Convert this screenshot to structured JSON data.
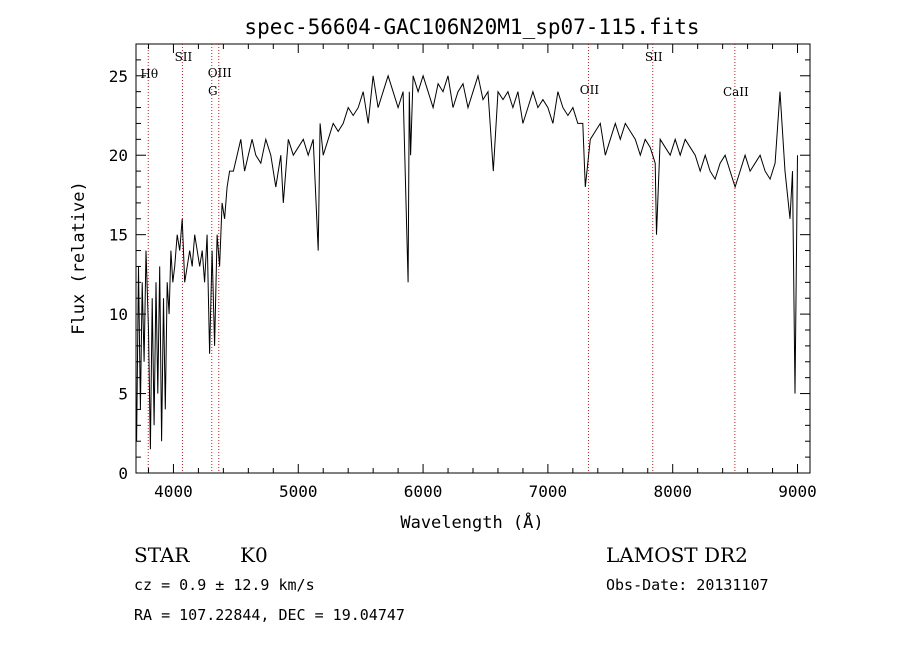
{
  "chart_data": {
    "type": "line",
    "title": "spec-56604-GAC106N20M1_sp07-115.fits",
    "xlabel": "Wavelength (Å)",
    "ylabel": "Flux (relative)",
    "xlim": [
      3700,
      9100
    ],
    "ylim": [
      0,
      27
    ],
    "grid": false,
    "x_ticks": [
      4000,
      5000,
      6000,
      7000,
      8000,
      9000
    ],
    "x_tick_labels": [
      "4000",
      "5000",
      "6000",
      "7000",
      "8000",
      "9000"
    ],
    "y_ticks": [
      0,
      5,
      10,
      15,
      20,
      25
    ],
    "y_tick_labels": [
      "0",
      "5",
      "10",
      "15",
      "20",
      "25"
    ],
    "line_color": "#000000",
    "marker_color": "#b22222",
    "series": [
      {
        "x": [
          3705,
          3720,
          3735,
          3750,
          3765,
          3780,
          3800,
          3815,
          3830,
          3845,
          3860,
          3875,
          3890,
          3905,
          3920,
          3935,
          3950,
          3965,
          3980,
          3995,
          4010,
          4030,
          4050,
          4070,
          4090,
          4110,
          4130,
          4150,
          4170,
          4190,
          4210,
          4230,
          4250,
          4270,
          4290,
          4310,
          4330,
          4350,
          4370,
          4390,
          4410,
          4430,
          4450,
          4480,
          4510,
          4540,
          4570,
          4600,
          4630,
          4660,
          4700,
          4740,
          4780,
          4820,
          4860,
          4880,
          4920,
          4960,
          5000,
          5040,
          5080,
          5120,
          5160,
          5175,
          5200,
          5240,
          5280,
          5320,
          5360,
          5400,
          5440,
          5480,
          5520,
          5560,
          5600,
          5640,
          5680,
          5720,
          5760,
          5800,
          5840,
          5880,
          5890,
          5900,
          5920,
          5960,
          6000,
          6040,
          6080,
          6120,
          6160,
          6200,
          6240,
          6280,
          6320,
          6360,
          6400,
          6440,
          6480,
          6520,
          6563,
          6600,
          6640,
          6680,
          6720,
          6760,
          6800,
          6840,
          6880,
          6920,
          6960,
          7000,
          7040,
          7080,
          7120,
          7160,
          7200,
          7240,
          7280,
          7300,
          7340,
          7380,
          7420,
          7460,
          7500,
          7540,
          7580,
          7620,
          7660,
          7700,
          7740,
          7780,
          7820,
          7860,
          7870,
          7900,
          7940,
          7980,
          8020,
          8060,
          8100,
          8140,
          8180,
          8220,
          8260,
          8300,
          8340,
          8380,
          8420,
          8460,
          8500,
          8540,
          8580,
          8620,
          8660,
          8700,
          8740,
          8780,
          8800,
          8820,
          8860,
          8900,
          8940,
          8960,
          8980,
          9000
        ],
        "y": [
          2,
          13,
          4,
          12,
          7,
          14,
          9,
          1.5,
          11,
          3,
          12,
          5,
          13,
          2,
          11,
          4,
          12,
          10,
          14,
          12,
          13,
          15,
          14,
          16,
          12,
          13,
          14,
          13,
          15,
          14,
          13,
          14,
          12,
          15,
          7.5,
          14,
          8,
          15,
          13,
          17,
          16,
          18,
          19,
          19,
          20,
          21,
          19,
          20,
          21,
          20,
          19.5,
          21,
          20,
          18,
          20,
          17,
          21,
          20,
          20.5,
          21,
          20,
          21,
          14,
          22,
          20,
          21,
          22,
          21.5,
          22,
          23,
          22.5,
          23,
          24,
          22,
          25,
          23,
          24,
          25,
          24,
          23,
          24,
          12,
          24,
          20,
          25,
          24,
          25,
          24,
          23,
          24.5,
          24,
          25,
          23,
          24,
          24.5,
          23,
          24,
          25,
          23.5,
          24,
          19,
          24,
          23.5,
          24,
          23,
          24,
          22,
          23,
          24,
          23,
          23.5,
          23,
          22,
          24,
          23,
          22.5,
          23,
          22,
          22,
          18,
          21,
          21.5,
          22,
          20,
          21,
          22,
          21,
          22,
          21.5,
          21,
          20,
          21,
          20.5,
          19.5,
          15,
          21,
          20.5,
          20,
          21,
          20,
          21,
          20.5,
          20,
          19,
          20,
          19,
          18.5,
          19.5,
          20,
          19,
          18,
          19,
          20,
          19,
          19.5,
          20,
          19,
          18.5,
          19,
          19.5,
          24,
          19,
          16,
          19,
          5,
          20
        ]
      }
    ],
    "lines": [
      {
        "label": "Hθ",
        "x": 3798
      },
      {
        "label": "SII",
        "x": 4072
      },
      {
        "label": "OIII",
        "x": 4363
      },
      {
        "label": "G",
        "x": 4307
      },
      {
        "label": "OII",
        "x": 7325
      },
      {
        "label": "SII",
        "x": 7840
      },
      {
        "label": "CaII",
        "x": 8498
      }
    ]
  },
  "info": {
    "object": "STAR",
    "subclass": "K0",
    "cz": "cz = 0.9 ± 12.9 km/s",
    "coords": "RA = 107.22844, DEC =  19.04747",
    "survey": "LAMOST DR2",
    "obs_date": "Obs-Date: 20131107"
  }
}
